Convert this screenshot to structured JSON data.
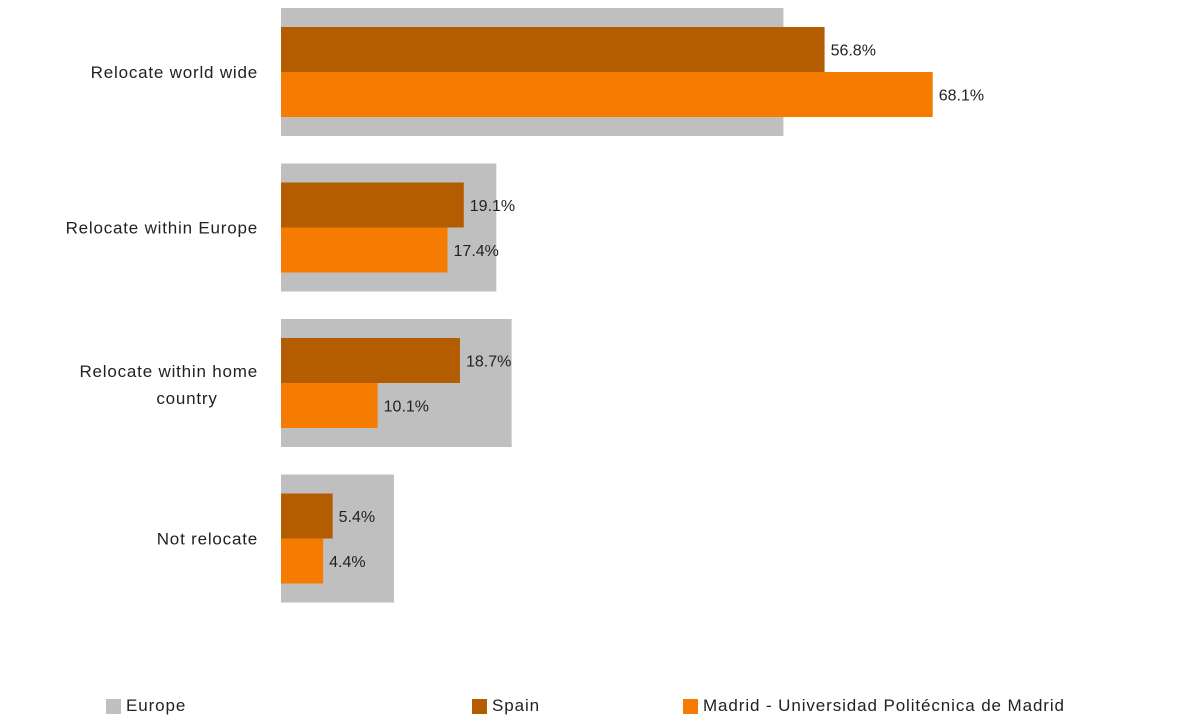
{
  "chart_data": {
    "type": "bar",
    "orientation": "horizontal",
    "categories": [
      "Relocate world wide",
      "Relocate within Europe",
      "Relocate within home country",
      "Not relocate"
    ],
    "category_lines": [
      [
        "Relocate world wide"
      ],
      [
        "Relocate within Europe"
      ],
      [
        "Relocate within",
        "home",
        "country"
      ],
      [
        "Not relocate"
      ]
    ],
    "series": [
      {
        "name": "Europe",
        "color": "#BFBFBF",
        "values": [
          52.5,
          22.5,
          24.1,
          11.8
        ],
        "role": "background"
      },
      {
        "name": "Spain",
        "color": "#B35C00",
        "values": [
          56.8,
          19.1,
          18.7,
          5.4
        ],
        "labels": [
          "56.8%",
          "19.1%",
          "18.7%",
          "5.4%"
        ]
      },
      {
        "name": "Madrid - Universidad Politécnica de Madrid",
        "color": "#F57C00",
        "values": [
          68.1,
          17.4,
          10.1,
          4.4
        ],
        "labels": [
          "68.1%",
          "17.4%",
          "10.1%",
          "4.4%"
        ]
      }
    ],
    "xlim": [
      0,
      100
    ],
    "grid": false,
    "legend_position": "bottom"
  }
}
